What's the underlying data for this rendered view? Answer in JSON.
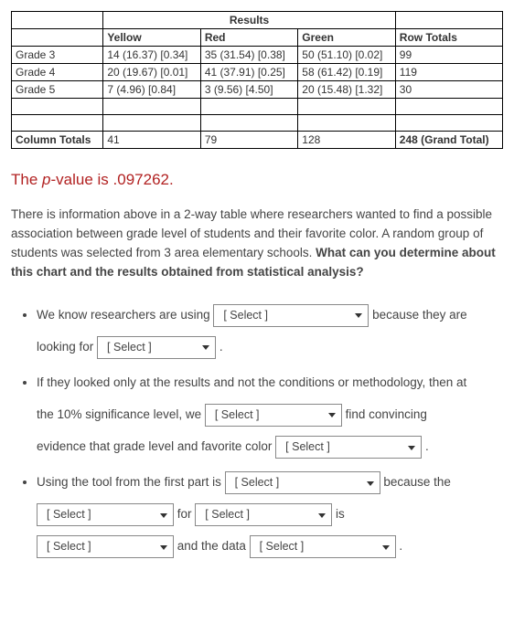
{
  "table": {
    "header_results": "Results",
    "columns": [
      "Yellow",
      "Red",
      "Green",
      "Row Totals"
    ],
    "rows": [
      {
        "label": "Grade 3",
        "cells": [
          "14 (16.37) [0.34]",
          "35 (31.54) [0.38]",
          "50 (51.10) [0.02]",
          "99"
        ]
      },
      {
        "label": "Grade 4",
        "cells": [
          "20 (19.67) [0.01]",
          "41 (37.91) [0.25]",
          "58 (61.42) [0.19]",
          "119"
        ]
      },
      {
        "label": "Grade 5",
        "cells": [
          "7 (4.96) [0.84]",
          "3 (9.56) [4.50]",
          "20 (15.48) [1.32]",
          "30"
        ]
      }
    ],
    "col_totals_label": "Column Totals",
    "col_totals": [
      "41",
      "79",
      "128",
      "248 (Grand Total)"
    ]
  },
  "pvalue": {
    "pre": "The ",
    "p": "p",
    "post": "-value is .097262."
  },
  "prompt": {
    "part1": "There is information above in a 2-way table where researchers wanted to find a possible association between grade level of students and their favorite color. A random group of students was selected from 3 area elementary schools. ",
    "bold": "What can you determine about this chart and the results obtained from statistical analysis?"
  },
  "q": {
    "b1_pre": "We know researchers are using ",
    "b1_post": " because they are",
    "b1_line2_pre": "looking for ",
    "b1_line2_post": " .",
    "b2_pre": "If they looked only at the results and not the conditions or methodology, then at",
    "b2_line2_pre": "the 10% significance level, we ",
    "b2_line2_post": " find convincing",
    "b2_line3_pre": "evidence that grade level and favorite color ",
    "b2_line3_post": " .",
    "b3_pre": "Using the tool from the first part is ",
    "b3_post": " because the",
    "b3_line2_mid1": " for ",
    "b3_line2_post": " is",
    "b3_line3_mid": " and the data ",
    "b3_line3_post": " ."
  },
  "select_placeholder": "[ Select ]"
}
